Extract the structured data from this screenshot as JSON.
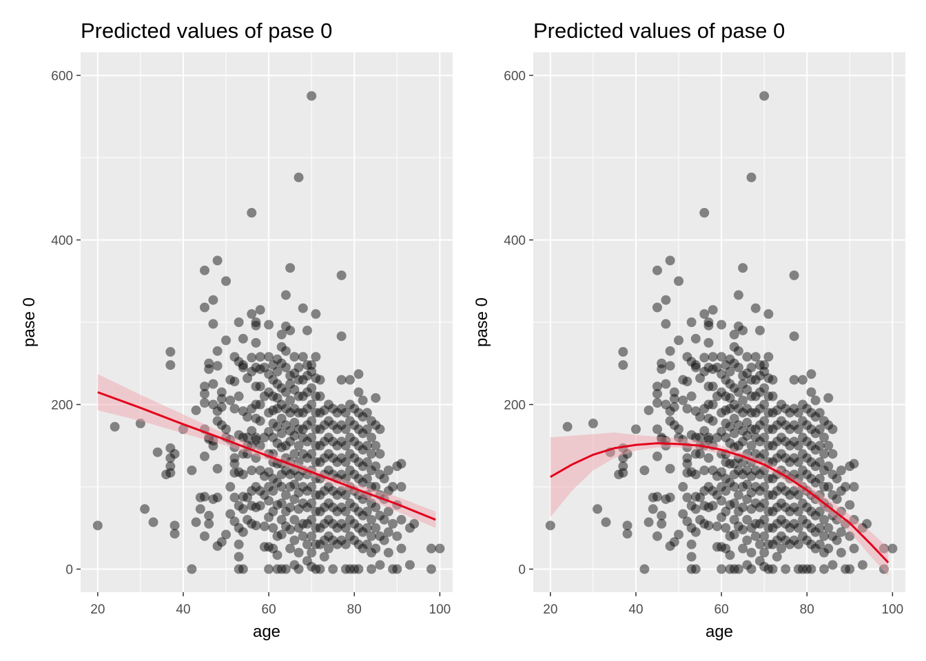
{
  "chart_data": [
    {
      "type": "scatter",
      "title": "Predicted values of pase 0",
      "xlabel": "age",
      "ylabel": "pase 0",
      "xlim": [
        16,
        103
      ],
      "ylim": [
        -28,
        628
      ],
      "xticks": [
        20,
        40,
        60,
        80,
        100
      ],
      "yticks": [
        0,
        200,
        400,
        600
      ],
      "xtick_labels": [
        "20",
        "40",
        "60",
        "80",
        "100"
      ],
      "ytick_labels": [
        "0",
        "200",
        "400",
        "600"
      ],
      "grid": true,
      "fit": {
        "model": "linear",
        "color": "#e3001b",
        "ribbon_color": "#f0a0a8",
        "x": [
          20,
          30,
          40,
          50,
          60,
          70,
          80,
          90,
          99
        ],
        "y": [
          215,
          196,
          176,
          157,
          137,
          118,
          98,
          79,
          60
        ],
        "lower": [
          193,
          180,
          165,
          150,
          132,
          113,
          92,
          70,
          50
        ],
        "upper": [
          237,
          212,
          188,
          164,
          142,
          123,
          104,
          88,
          70
        ]
      },
      "points": []
    },
    {
      "type": "scatter",
      "title": "Predicted values of pase 0",
      "xlabel": "age",
      "ylabel": "pase 0",
      "xlim": [
        16,
        103
      ],
      "ylim": [
        -28,
        628
      ],
      "xticks": [
        20,
        40,
        60,
        80,
        100
      ],
      "yticks": [
        0,
        200,
        400,
        600
      ],
      "xtick_labels": [
        "20",
        "40",
        "60",
        "80",
        "100"
      ],
      "ytick_labels": [
        "0",
        "200",
        "400",
        "600"
      ],
      "grid": true,
      "fit": {
        "model": "quadratic",
        "color": "#e3001b",
        "ribbon_color": "#f0a0a8",
        "x": [
          20,
          25,
          30,
          35,
          40,
          45,
          50,
          55,
          60,
          65,
          70,
          75,
          80,
          85,
          90,
          95,
          99
        ],
        "y": [
          112,
          127,
          139,
          147,
          151,
          153,
          152,
          150,
          145,
          137,
          127,
          113,
          96,
          76,
          56,
          30,
          8
        ],
        "lower": [
          63,
          95,
          120,
          135,
          144,
          148,
          148,
          145,
          140,
          133,
          122,
          107,
          90,
          68,
          45,
          15,
          -8
        ],
        "upper": [
          160,
          162,
          164,
          166,
          163,
          161,
          159,
          156,
          150,
          142,
          132,
          119,
          103,
          85,
          66,
          45,
          26
        ]
      },
      "points": []
    }
  ],
  "points_src": [
    [
      20,
      53
    ],
    [
      24,
      173
    ],
    [
      30,
      177
    ],
    [
      31,
      73
    ],
    [
      33,
      57
    ],
    [
      34,
      142
    ],
    [
      36,
      115
    ],
    [
      37,
      117
    ],
    [
      37,
      125
    ],
    [
      37,
      135
    ],
    [
      37,
      147
    ],
    [
      37,
      248
    ],
    [
      37,
      264
    ],
    [
      38,
      140
    ],
    [
      38,
      53
    ],
    [
      38,
      43
    ],
    [
      40,
      170
    ],
    [
      42,
      120
    ],
    [
      42,
      0
    ],
    [
      43,
      57
    ],
    [
      43,
      193
    ],
    [
      44,
      87
    ],
    [
      44,
      73
    ],
    [
      45,
      363
    ],
    [
      45,
      318
    ],
    [
      45,
      222
    ],
    [
      45,
      202
    ],
    [
      45,
      170
    ],
    [
      45,
      137
    ],
    [
      45,
      88
    ],
    [
      45,
      40
    ],
    [
      45,
      213
    ],
    [
      46,
      250
    ],
    [
      46,
      243
    ],
    [
      46,
      160
    ],
    [
      46,
      158
    ],
    [
      46,
      65
    ],
    [
      46,
      55
    ],
    [
      47,
      327
    ],
    [
      47,
      298
    ],
    [
      47,
      225
    ],
    [
      47,
      200
    ],
    [
      47,
      156
    ],
    [
      47,
      150
    ],
    [
      47,
      85
    ],
    [
      48,
      375
    ],
    [
      48,
      265
    ],
    [
      48,
      247
    ],
    [
      48,
      192
    ],
    [
      48,
      180
    ],
    [
      48,
      122
    ],
    [
      48,
      87
    ],
    [
      48,
      28
    ],
    [
      49,
      215
    ],
    [
      49,
      207
    ],
    [
      49,
      197
    ],
    [
      49,
      175
    ],
    [
      49,
      33
    ],
    [
      50,
      350
    ],
    [
      50,
      278
    ],
    [
      50,
      170
    ],
    [
      50,
      160
    ],
    [
      50,
      42
    ],
    [
      51,
      230
    ],
    [
      51,
      205
    ],
    [
      51,
      157
    ],
    [
      51,
      100
    ],
    [
      51,
      67
    ],
    [
      52,
      258
    ],
    [
      52,
      228
    ],
    [
      52,
      195
    ],
    [
      52,
      148
    ],
    [
      52,
      135
    ],
    [
      52,
      128
    ],
    [
      52,
      117
    ],
    [
      52,
      87
    ],
    [
      52,
      58
    ],
    [
      53,
      300
    ],
    [
      53,
      252
    ],
    [
      53,
      210
    ],
    [
      53,
      163
    ],
    [
      53,
      118
    ],
    [
      53,
      77
    ],
    [
      53,
      50
    ],
    [
      53,
      30
    ],
    [
      53,
      15
    ],
    [
      53,
      0
    ],
    [
      54,
      0
    ],
    [
      54,
      280
    ],
    [
      54,
      248
    ],
    [
      54,
      245
    ],
    [
      54,
      192
    ],
    [
      54,
      160
    ],
    [
      54,
      140
    ],
    [
      54,
      115
    ],
    [
      54,
      88
    ],
    [
      54,
      73
    ],
    [
      54,
      45
    ],
    [
      55,
      185
    ],
    [
      55,
      160
    ],
    [
      55,
      232
    ],
    [
      55,
      150
    ],
    [
      55,
      140
    ],
    [
      55,
      87
    ],
    [
      55,
      60
    ],
    [
      56,
      433
    ],
    [
      56,
      310
    ],
    [
      56,
      257
    ],
    [
      56,
      240
    ],
    [
      56,
      195
    ],
    [
      56,
      168
    ],
    [
      56,
      150
    ],
    [
      56,
      120
    ],
    [
      56,
      95
    ],
    [
      56,
      77
    ],
    [
      56,
      55
    ],
    [
      57,
      300
    ],
    [
      57,
      296
    ],
    [
      57,
      275
    ],
    [
      57,
      245
    ],
    [
      57,
      222
    ],
    [
      57,
      200
    ],
    [
      57,
      183
    ],
    [
      57,
      160
    ],
    [
      57,
      157
    ],
    [
      57,
      135
    ],
    [
      57,
      100
    ],
    [
      57,
      75
    ],
    [
      57,
      53
    ],
    [
      58,
      315
    ],
    [
      58,
      258
    ],
    [
      58,
      243
    ],
    [
      58,
      222
    ],
    [
      58,
      200
    ],
    [
      58,
      180
    ],
    [
      58,
      150
    ],
    [
      58,
      120
    ],
    [
      58,
      95
    ],
    [
      58,
      77
    ],
    [
      59,
      245
    ],
    [
      59,
      210
    ],
    [
      59,
      160
    ],
    [
      59,
      113
    ],
    [
      59,
      90
    ],
    [
      59,
      52
    ],
    [
      59,
      27
    ],
    [
      60,
      297
    ],
    [
      60,
      258
    ],
    [
      60,
      237
    ],
    [
      60,
      215
    ],
    [
      60,
      190
    ],
    [
      60,
      167
    ],
    [
      60,
      140
    ],
    [
      60,
      118
    ],
    [
      60,
      100
    ],
    [
      60,
      83
    ],
    [
      60,
      63
    ],
    [
      60,
      27
    ],
    [
      60,
      0
    ],
    [
      61,
      248
    ],
    [
      61,
      230
    ],
    [
      61,
      210
    ],
    [
      61,
      193
    ],
    [
      61,
      177
    ],
    [
      61,
      160
    ],
    [
      61,
      140
    ],
    [
      61,
      130
    ],
    [
      61,
      110
    ],
    [
      61,
      95
    ],
    [
      61,
      70
    ],
    [
      61,
      50
    ],
    [
      61,
      25
    ],
    [
      62,
      255
    ],
    [
      62,
      240
    ],
    [
      62,
      225
    ],
    [
      62,
      208
    ],
    [
      62,
      195
    ],
    [
      62,
      173
    ],
    [
      62,
      153
    ],
    [
      62,
      128
    ],
    [
      62,
      105
    ],
    [
      62,
      78
    ],
    [
      62,
      40
    ],
    [
      62,
      17
    ],
    [
      62,
      0
    ],
    [
      63,
      285
    ],
    [
      63,
      270
    ],
    [
      63,
      250
    ],
    [
      63,
      220
    ],
    [
      63,
      200
    ],
    [
      63,
      183
    ],
    [
      63,
      165
    ],
    [
      63,
      148
    ],
    [
      63,
      128
    ],
    [
      63,
      115
    ],
    [
      63,
      100
    ],
    [
      63,
      80
    ],
    [
      63,
      60
    ],
    [
      63,
      42
    ],
    [
      63,
      0
    ],
    [
      64,
      333
    ],
    [
      64,
      295
    ],
    [
      64,
      265
    ],
    [
      64,
      245
    ],
    [
      64,
      215
    ],
    [
      64,
      195
    ],
    [
      64,
      175
    ],
    [
      64,
      150
    ],
    [
      64,
      135
    ],
    [
      64,
      120
    ],
    [
      64,
      90
    ],
    [
      64,
      70
    ],
    [
      64,
      52
    ],
    [
      64,
      0
    ],
    [
      65,
      366
    ],
    [
      65,
      290
    ],
    [
      65,
      235
    ],
    [
      65,
      225
    ],
    [
      65,
      205
    ],
    [
      65,
      190
    ],
    [
      65,
      168
    ],
    [
      65,
      155
    ],
    [
      65,
      130
    ],
    [
      65,
      115
    ],
    [
      65,
      100
    ],
    [
      65,
      75
    ],
    [
      65,
      48
    ],
    [
      65,
      25
    ],
    [
      66,
      258
    ],
    [
      66,
      238
    ],
    [
      66,
      218
    ],
    [
      66,
      195
    ],
    [
      66,
      178
    ],
    [
      66,
      162
    ],
    [
      66,
      140
    ],
    [
      66,
      120
    ],
    [
      66,
      103
    ],
    [
      66,
      85
    ],
    [
      66,
      60
    ],
    [
      66,
      35
    ],
    [
      66,
      5
    ],
    [
      67,
      476
    ],
    [
      67,
      245
    ],
    [
      67,
      230
    ],
    [
      67,
      210
    ],
    [
      67,
      190
    ],
    [
      67,
      170
    ],
    [
      67,
      150
    ],
    [
      67,
      130
    ],
    [
      67,
      113
    ],
    [
      67,
      93
    ],
    [
      67,
      73
    ],
    [
      67,
      50
    ],
    [
      67,
      20
    ],
    [
      67,
      0
    ],
    [
      68,
      317
    ],
    [
      68,
      258
    ],
    [
      68,
      230
    ],
    [
      68,
      210
    ],
    [
      68,
      190
    ],
    [
      68,
      170
    ],
    [
      68,
      160
    ],
    [
      68,
      140
    ],
    [
      68,
      120
    ],
    [
      68,
      100
    ],
    [
      68,
      80
    ],
    [
      68,
      55
    ],
    [
      68,
      40
    ],
    [
      69,
      290
    ],
    [
      69,
      248
    ],
    [
      69,
      235
    ],
    [
      69,
      215
    ],
    [
      69,
      195
    ],
    [
      69,
      175
    ],
    [
      69,
      155
    ],
    [
      69,
      135
    ],
    [
      69,
      115
    ],
    [
      69,
      95
    ],
    [
      69,
      75
    ],
    [
      69,
      55
    ],
    [
      69,
      30
    ],
    [
      69,
      10
    ],
    [
      70,
      575
    ],
    [
      70,
      248
    ],
    [
      70,
      240
    ],
    [
      70,
      220
    ],
    [
      70,
      200
    ],
    [
      70,
      180
    ],
    [
      70,
      160
    ],
    [
      70,
      140
    ],
    [
      70,
      120
    ],
    [
      70,
      100
    ],
    [
      70,
      80
    ],
    [
      70,
      60
    ],
    [
      70,
      40
    ],
    [
      70,
      20
    ],
    [
      70,
      3
    ],
    [
      71,
      310
    ],
    [
      71,
      258
    ],
    [
      71,
      232
    ],
    [
      71,
      210
    ],
    [
      71,
      190
    ],
    [
      71,
      170
    ],
    [
      71,
      150
    ],
    [
      71,
      130
    ],
    [
      71,
      110
    ],
    [
      71,
      90
    ],
    [
      71,
      70
    ],
    [
      71,
      50
    ],
    [
      71,
      30
    ],
    [
      71,
      0
    ],
    [
      72,
      230
    ],
    [
      72,
      210
    ],
    [
      72,
      190
    ],
    [
      72,
      170
    ],
    [
      72,
      150
    ],
    [
      72,
      130
    ],
    [
      72,
      110
    ],
    [
      72,
      90
    ],
    [
      72,
      70
    ],
    [
      72,
      50
    ],
    [
      72,
      30
    ],
    [
      72,
      0
    ],
    [
      73,
      193
    ],
    [
      73,
      175
    ],
    [
      73,
      155
    ],
    [
      73,
      135
    ],
    [
      73,
      115
    ],
    [
      73,
      95
    ],
    [
      73,
      75
    ],
    [
      73,
      55
    ],
    [
      73,
      35
    ],
    [
      73,
      15
    ],
    [
      74,
      200
    ],
    [
      74,
      180
    ],
    [
      74,
      160
    ],
    [
      74,
      140
    ],
    [
      74,
      120
    ],
    [
      74,
      100
    ],
    [
      74,
      80
    ],
    [
      74,
      60
    ],
    [
      74,
      40
    ],
    [
      74,
      25
    ],
    [
      75,
      195
    ],
    [
      75,
      175
    ],
    [
      75,
      155
    ],
    [
      75,
      135
    ],
    [
      75,
      115
    ],
    [
      75,
      95
    ],
    [
      75,
      75
    ],
    [
      75,
      55
    ],
    [
      75,
      35
    ],
    [
      75,
      0
    ],
    [
      76,
      190
    ],
    [
      76,
      170
    ],
    [
      76,
      150
    ],
    [
      76,
      130
    ],
    [
      76,
      110
    ],
    [
      76,
      90
    ],
    [
      76,
      70
    ],
    [
      76,
      50
    ],
    [
      76,
      30
    ],
    [
      77,
      357
    ],
    [
      77,
      283
    ],
    [
      77,
      230
    ],
    [
      77,
      195
    ],
    [
      77,
      175
    ],
    [
      77,
      155
    ],
    [
      77,
      135
    ],
    [
      77,
      115
    ],
    [
      77,
      95
    ],
    [
      77,
      75
    ],
    [
      77,
      55
    ],
    [
      77,
      35
    ],
    [
      78,
      190
    ],
    [
      78,
      170
    ],
    [
      78,
      150
    ],
    [
      78,
      130
    ],
    [
      78,
      110
    ],
    [
      78,
      90
    ],
    [
      78,
      70
    ],
    [
      78,
      50
    ],
    [
      78,
      30
    ],
    [
      78,
      0
    ],
    [
      79,
      230
    ],
    [
      79,
      200
    ],
    [
      79,
      180
    ],
    [
      79,
      160
    ],
    [
      79,
      140
    ],
    [
      79,
      120
    ],
    [
      79,
      100
    ],
    [
      79,
      80
    ],
    [
      79,
      60
    ],
    [
      79,
      40
    ],
    [
      79,
      0
    ],
    [
      80,
      195
    ],
    [
      80,
      175
    ],
    [
      80,
      155
    ],
    [
      80,
      135
    ],
    [
      80,
      115
    ],
    [
      80,
      95
    ],
    [
      80,
      75
    ],
    [
      80,
      55
    ],
    [
      80,
      35
    ],
    [
      80,
      0
    ],
    [
      81,
      237
    ],
    [
      81,
      215
    ],
    [
      81,
      190
    ],
    [
      81,
      170
    ],
    [
      81,
      150
    ],
    [
      81,
      130
    ],
    [
      81,
      110
    ],
    [
      81,
      90
    ],
    [
      81,
      70
    ],
    [
      81,
      50
    ],
    [
      81,
      30
    ],
    [
      81,
      0
    ],
    [
      82,
      205
    ],
    [
      82,
      185
    ],
    [
      82,
      165
    ],
    [
      82,
      145
    ],
    [
      82,
      125
    ],
    [
      82,
      105
    ],
    [
      82,
      85
    ],
    [
      82,
      65
    ],
    [
      82,
      45
    ],
    [
      82,
      25
    ],
    [
      83,
      190
    ],
    [
      83,
      170
    ],
    [
      83,
      150
    ],
    [
      83,
      130
    ],
    [
      83,
      110
    ],
    [
      83,
      90
    ],
    [
      83,
      70
    ],
    [
      83,
      50
    ],
    [
      83,
      30
    ],
    [
      84,
      180
    ],
    [
      84,
      160
    ],
    [
      84,
      140
    ],
    [
      84,
      120
    ],
    [
      84,
      100
    ],
    [
      84,
      80
    ],
    [
      84,
      60
    ],
    [
      84,
      40
    ],
    [
      84,
      20
    ],
    [
      84,
      0
    ],
    [
      85,
      208
    ],
    [
      85,
      175
    ],
    [
      85,
      150
    ],
    [
      85,
      125
    ],
    [
      85,
      100
    ],
    [
      85,
      75
    ],
    [
      85,
      50
    ],
    [
      85,
      25
    ],
    [
      86,
      170
    ],
    [
      86,
      140
    ],
    [
      86,
      115
    ],
    [
      86,
      90
    ],
    [
      86,
      65
    ],
    [
      86,
      40
    ],
    [
      86,
      5
    ],
    [
      87,
      110
    ],
    [
      87,
      85
    ],
    [
      87,
      60
    ],
    [
      87,
      35
    ],
    [
      88,
      120
    ],
    [
      88,
      95
    ],
    [
      88,
      70
    ],
    [
      88,
      45
    ],
    [
      88,
      20
    ],
    [
      89,
      0
    ],
    [
      89,
      100
    ],
    [
      89,
      55
    ],
    [
      90,
      125
    ],
    [
      90,
      78
    ],
    [
      90,
      40
    ],
    [
      90,
      0
    ],
    [
      91,
      128
    ],
    [
      91,
      100
    ],
    [
      91,
      60
    ],
    [
      91,
      25
    ],
    [
      93,
      5
    ],
    [
      93,
      50
    ],
    [
      94,
      55
    ],
    [
      98,
      25
    ],
    [
      98,
      0
    ],
    [
      100,
      25
    ]
  ]
}
